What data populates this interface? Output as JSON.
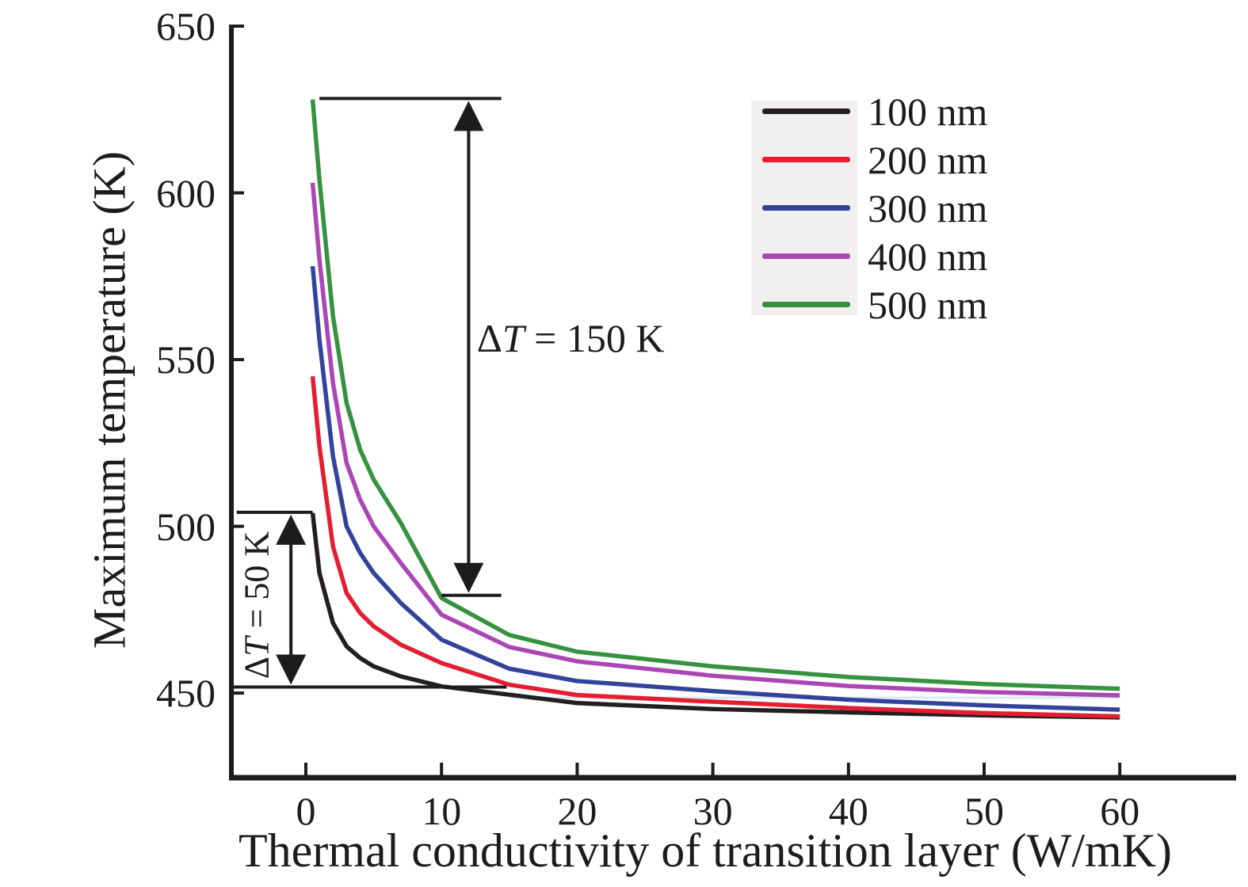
{
  "chart_data": {
    "type": "line",
    "title": "",
    "xlabel": "Thermal conductivity of transition layer (W/mK)",
    "ylabel": "Maximum temperature (K)",
    "xlim": [
      -5.5,
      68.6
    ],
    "ylim": [
      424.5,
      650.5
    ],
    "xticks": [
      0,
      10,
      20,
      30,
      40,
      50,
      60
    ],
    "yticks": [
      450,
      500,
      550,
      600,
      650
    ],
    "grid": false,
    "legend_position": "upper right",
    "x": [
      0.5,
      1,
      2,
      3,
      4,
      5,
      7,
      10,
      15,
      20,
      30,
      40,
      50,
      60
    ],
    "series": [
      {
        "name": "100 nm",
        "color": "#231f20",
        "values": [
          504,
          486,
          471,
          464,
          460.5,
          458,
          455,
          452,
          449.5,
          447,
          445.2,
          444.2,
          443.3,
          442.7
        ]
      },
      {
        "name": "200 nm",
        "color": "#e31e30",
        "values": [
          545,
          524,
          494,
          480,
          474,
          470,
          464.5,
          459,
          452.5,
          449.4,
          447.4,
          445.5,
          444.0,
          443.0
        ]
      },
      {
        "name": "300 nm",
        "color": "#32439b",
        "values": [
          578,
          556,
          521,
          500,
          492,
          486,
          477,
          466,
          457.3,
          453.6,
          450.6,
          448.0,
          446.3,
          445.0
        ]
      },
      {
        "name": "400 nm",
        "color": "#ab47b5",
        "values": [
          603,
          580,
          543,
          519,
          508,
          500,
          489,
          473.5,
          463.8,
          459.5,
          455.2,
          452.1,
          450.3,
          449.3
        ]
      },
      {
        "name": "500 nm",
        "color": "#35923f",
        "values": [
          628,
          604,
          563,
          537,
          523,
          514,
          501,
          478.5,
          467.4,
          462.4,
          458.0,
          454.8,
          452.7,
          451.3
        ]
      }
    ],
    "annotations": [
      {
        "id": "dt150",
        "prefix": "Δ",
        "symbol": "T",
        "rest": " = 150 K",
        "arrow_x": 12.0,
        "top_T": 628.3,
        "bottom_T": 479.3,
        "top_line_x": [
          1.0,
          14.4
        ],
        "bottom_line_x": [
          10.0,
          14.4
        ],
        "label_x": 12.6,
        "label_T": 556.5,
        "rotate": 0
      },
      {
        "id": "dt50",
        "prefix": "Δ",
        "symbol": "T",
        "rest": " = 50 K",
        "arrow_x": -1.1,
        "top_T": 504.2,
        "bottom_T": 451.8,
        "top_line_x": [
          -5.1,
          0.5
        ],
        "bottom_line_x": [
          -5.5,
          14.8
        ],
        "label_x": -3.6,
        "label_T": 476.5,
        "rotate": -90
      }
    ],
    "axis_color": "#1c1c1c"
  }
}
